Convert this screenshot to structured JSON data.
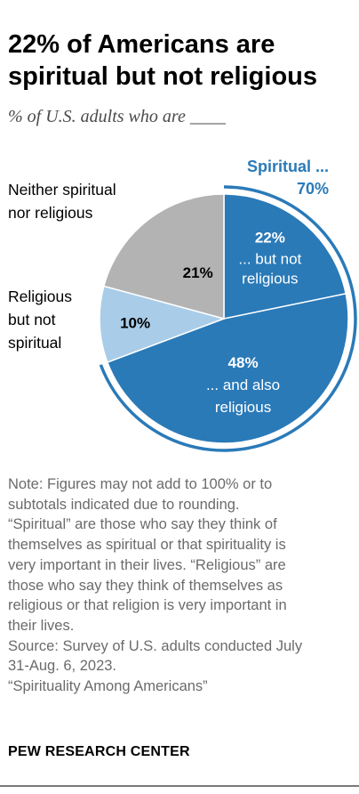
{
  "title_line1": "22% of Americans are",
  "title_line2": "spiritual but not religious",
  "subtitle": "% of U.S. adults who are ____",
  "chart_data": {
    "type": "pie",
    "slices": [
      {
        "value": 22,
        "label": "22%",
        "text": [
          "... but not",
          "religious"
        ],
        "color": "#2a7ab8",
        "group": "spiritual"
      },
      {
        "value": 48,
        "label": "48%",
        "text": [
          "... and also",
          "religious"
        ],
        "color": "#2a7ab8",
        "group": "spiritual"
      },
      {
        "value": 10,
        "label": "10%",
        "color": "#a9cde9",
        "group": "other"
      },
      {
        "value": 21,
        "label": "21%",
        "color": "#b3b3b3",
        "group": "other"
      }
    ],
    "group_bracket": {
      "label_line1": "Spiritual ...",
      "label_line2": "70%",
      "color": "#2a7ab8"
    },
    "outside_labels": {
      "religious_not_spiritual": [
        "Religious",
        "but not",
        "spiritual"
      ],
      "neither": [
        "Neither spiritual",
        "nor religious"
      ]
    }
  },
  "notes": {
    "line1": "Note: Figures may not add to 100% or to",
    "line2": "subtotals indicated due to rounding.",
    "line3": "“Spiritual” are those who say they think of",
    "line4": "themselves as spiritual or that spirituality is",
    "line5": "very important in their lives. “Religious” are",
    "line6": "those who say they think of themselves as",
    "line7": "religious or that religion is very important in",
    "line8": "their lives.",
    "source1": "Source: Survey of U.S. adults conducted July",
    "source2": "31-Aug. 6, 2023.",
    "report": "“Spirituality Among Americans”"
  },
  "brand": "PEW RESEARCH CENTER"
}
